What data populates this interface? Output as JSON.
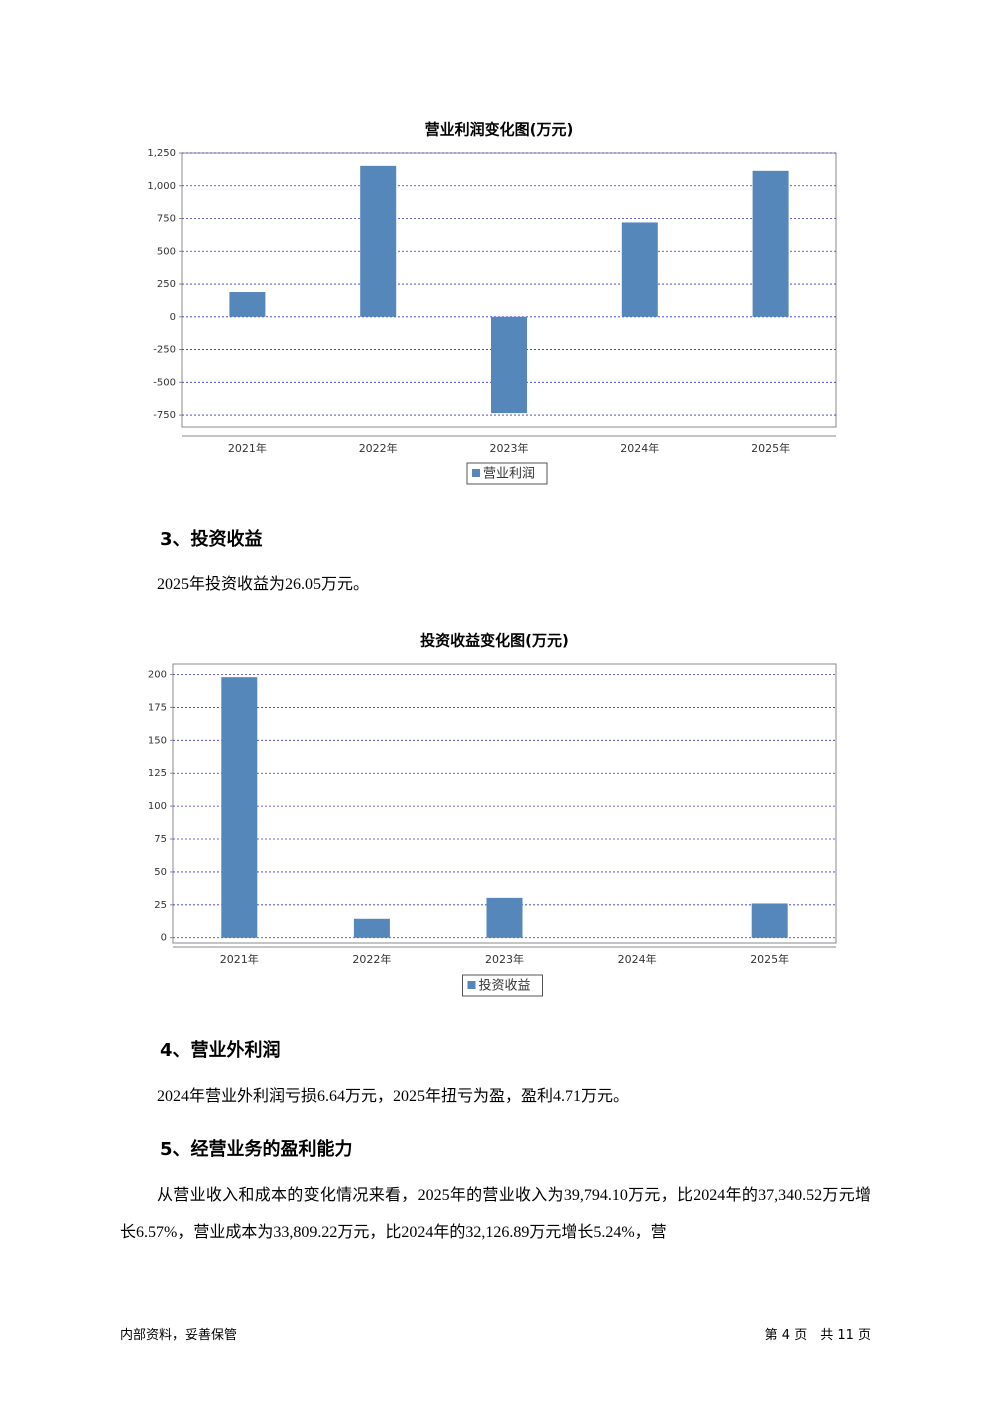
{
  "chart_data": [
    {
      "type": "bar",
      "title": "营业利润变化图(万元)",
      "categories": [
        "2021年",
        "2022年",
        "2023年",
        "2024年",
        "2025年"
      ],
      "series": [
        {
          "name": "营业利润",
          "color": "#5587bb",
          "values": [
            189,
            1152,
            -735,
            720,
            1114
          ]
        }
      ],
      "ylim": [
        -841,
        1250
      ],
      "yticks": [
        -750,
        -500,
        -250,
        0,
        250,
        500,
        750,
        {
          "value": 1000,
          "label": "1,000"
        },
        {
          "value": 1250,
          "label": "1,250"
        }
      ],
      "grid": true
    },
    {
      "type": "bar",
      "title": "投资收益变化图(万元)",
      "categories": [
        "2021年",
        "2022年",
        "2023年",
        "2024年",
        "2025年"
      ],
      "series": [
        {
          "name": "投资收益",
          "color": "#5587bb",
          "values": [
            198,
            14.4,
            30.3,
            0,
            26.05
          ]
        }
      ],
      "ylim": [
        -4,
        208
      ],
      "yticks": [
        0,
        25,
        50,
        75,
        100,
        125,
        150,
        175,
        200
      ],
      "grid": true
    }
  ],
  "sections": [
    {
      "heading": "3、投资收益",
      "paragraphs": [
        "2025年投资收益为26.05万元。"
      ]
    },
    {
      "heading": "4、营业外利润",
      "paragraphs": [
        "2024年营业外利润亏损6.64万元，2025年扭亏为盈，盈利4.71万元。"
      ]
    },
    {
      "heading": "5、经营业务的盈利能力",
      "paragraphs": [
        "从营业收入和成本的变化情况来看，2025年的营业收入为39,794.10万元，比2024年的37,340.52万元增长6.57%，营业成本为33,809.22万元，比2024年的32,126.89万元增长5.24%，营"
      ]
    }
  ],
  "footer": {
    "left": "内部资料，妥善保管",
    "right": "第 4 页　共 11 页"
  }
}
